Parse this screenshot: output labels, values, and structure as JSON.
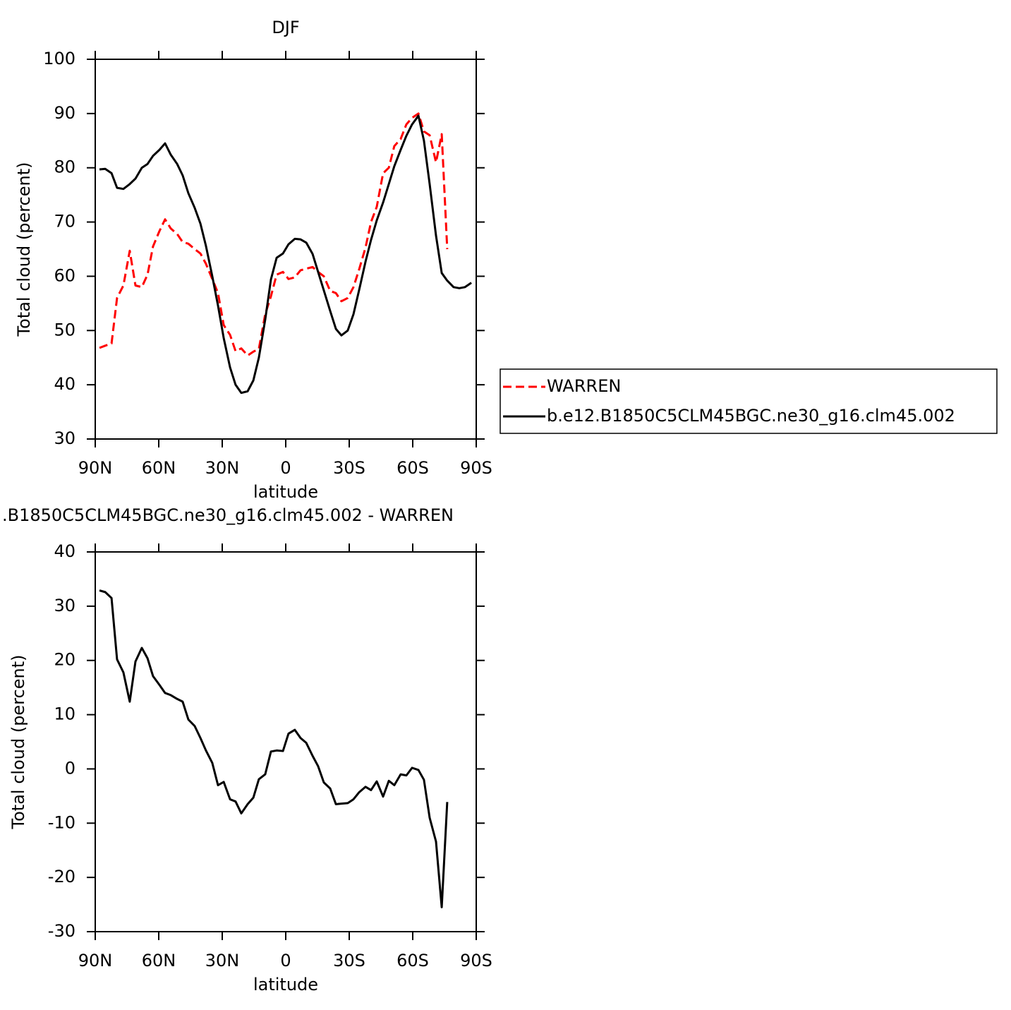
{
  "chart_data": [
    {
      "type": "line",
      "title": "DJF",
      "x_label": "latitude",
      "y_label": "Total cloud (percent)",
      "x": [
        88,
        85.3,
        82.3,
        79.7,
        76.7,
        73.7,
        71,
        68,
        65.3,
        62.7,
        59.7,
        57,
        54.3,
        51.3,
        48.7,
        46,
        43,
        40.3,
        37.7,
        34.7,
        32,
        29.3,
        26.3,
        23.7,
        21,
        18,
        15.3,
        12.7,
        9.7,
        7,
        4.3,
        1.3,
        -1.3,
        -4.3,
        -7,
        -9.7,
        -12.7,
        -15.3,
        -18,
        -21,
        -23.7,
        -26.3,
        -29.3,
        -32,
        -34.7,
        -37.7,
        -40.3,
        -43,
        -46,
        -48.7,
        -51.3,
        -54.3,
        -57,
        -59.7,
        -62.7,
        -65.3,
        -68,
        -71,
        -73.7,
        -76.3,
        -79.3,
        -82,
        -84.7,
        -87.7
      ],
      "series": [
        {
          "name": "WARREN",
          "color": "#ff0000",
          "dashed": true,
          "values": [
            46.8,
            47.2,
            47.6,
            56,
            58.3,
            64.7,
            58.3,
            58,
            60.3,
            65.5,
            68.3,
            70.5,
            68.8,
            67.8,
            66.3,
            66,
            65,
            64.2,
            62.3,
            59.5,
            56.9,
            51,
            49.2,
            46.2,
            46.7,
            45.4,
            46.1,
            46.6,
            53,
            56.3,
            60.3,
            60.8,
            59.5,
            59.8,
            61.1,
            61.4,
            61.7,
            60.8,
            60,
            57.3,
            56.9,
            55.4,
            56,
            58,
            61.3,
            65.3,
            70,
            72.8,
            79,
            80,
            84,
            85.3,
            88,
            89.2,
            90,
            86.7,
            86,
            81,
            86.2,
            65,
            null,
            null,
            null,
            null
          ]
        },
        {
          "name": "b.e12.B1850C5CLM45BGC.ne30_g16.clm45.002",
          "color": "#000000",
          "dashed": false,
          "values": [
            79.7,
            79.8,
            79,
            76.3,
            76.1,
            77,
            78,
            80,
            80.7,
            82.2,
            83.3,
            84.5,
            82.4,
            80.7,
            78.6,
            75.3,
            72.6,
            69.7,
            65.6,
            60,
            54.6,
            48.6,
            43.2,
            40,
            38.5,
            38.8,
            40.8,
            45,
            52,
            59.4,
            63.4,
            64.2,
            65.9,
            66.9,
            66.8,
            66.2,
            64.1,
            60.8,
            57.4,
            53.6,
            50.3,
            49.1,
            50,
            53,
            57.5,
            62.7,
            66.7,
            70.3,
            73.6,
            77,
            80.3,
            83.3,
            85.9,
            88,
            89.6,
            85,
            77,
            67.5,
            60.6,
            59.2,
            58,
            57.8,
            58,
            58.8
          ]
        }
      ],
      "xlim": [
        90,
        -90
      ],
      "xticks": [
        {
          "value": 90,
          "label": "90N"
        },
        {
          "value": 60,
          "label": "60N"
        },
        {
          "value": 30,
          "label": "30N"
        },
        0,
        {
          "value": -30,
          "label": "30S"
        },
        {
          "value": -60,
          "label": "60S"
        },
        {
          "value": -90,
          "label": "90S"
        }
      ],
      "ylim": [
        30,
        100
      ],
      "yticks": [
        30,
        40,
        50,
        60,
        70,
        80,
        90,
        100
      ]
    },
    {
      "type": "line",
      "title": ".B1850C5CLM45BGC.ne30_g16.clm45.002 - WARREN",
      "x_label": "latitude",
      "y_label": "Total cloud (percent)",
      "x": [
        88,
        85.3,
        82.3,
        79.7,
        76.7,
        73.7,
        71,
        68,
        65.3,
        62.7,
        59.7,
        57,
        54.3,
        51.3,
        48.7,
        46,
        43,
        40.3,
        37.7,
        34.7,
        32,
        29.3,
        26.3,
        23.7,
        21,
        18,
        15.3,
        12.7,
        9.7,
        7,
        4.3,
        1.3,
        -1.3,
        -4.3,
        -7,
        -9.7,
        -12.7,
        -15.3,
        -18,
        -21,
        -23.7,
        -26.3,
        -29.3,
        -32,
        -34.7,
        -37.7,
        -40.3,
        -43,
        -46,
        -48.7,
        -51.3,
        -54.3,
        -57,
        -59.7,
        -62.7,
        -65.3,
        -68,
        -71,
        -73.7,
        -76.3,
        -79.3,
        -82,
        -84.7,
        -87.7
      ],
      "series": [
        {
          "color": "#000000",
          "dashed": false,
          "values": [
            32.9,
            32.6,
            31.5,
            20.2,
            17.8,
            12.4,
            19.8,
            22.3,
            20.4,
            17.1,
            15.5,
            14,
            13.6,
            12.9,
            12.4,
            9.1,
            7.9,
            5.7,
            3.4,
            1.1,
            -3,
            -2.4,
            -5.6,
            -6,
            -8.2,
            -6.5,
            -5.3,
            -1.9,
            -1,
            3.2,
            3.4,
            3.3,
            6.5,
            7.2,
            5.7,
            4.8,
            2.4,
            0.5,
            -2.5,
            -3.6,
            -6.5,
            -6.4,
            -6.3,
            -5.6,
            -4.3,
            -3.3,
            -3.9,
            -2.3,
            -5.1,
            -2.2,
            -3,
            -1,
            -1.2,
            0.2,
            -0.2,
            -2,
            -9,
            -13.4,
            -25.5,
            -6.1,
            null,
            null,
            null,
            null
          ]
        }
      ],
      "xlim": [
        90,
        -90
      ],
      "xticks": [
        {
          "value": 90,
          "label": "90N"
        },
        {
          "value": 60,
          "label": "60N"
        },
        {
          "value": 30,
          "label": "30N"
        },
        0,
        {
          "value": -30,
          "label": "30S"
        },
        {
          "value": -60,
          "label": "60S"
        },
        {
          "value": -90,
          "label": "90S"
        }
      ],
      "ylim": [
        -30,
        40
      ],
      "yticks": [
        -30,
        -20,
        -10,
        0,
        10,
        20,
        30,
        40
      ]
    }
  ]
}
